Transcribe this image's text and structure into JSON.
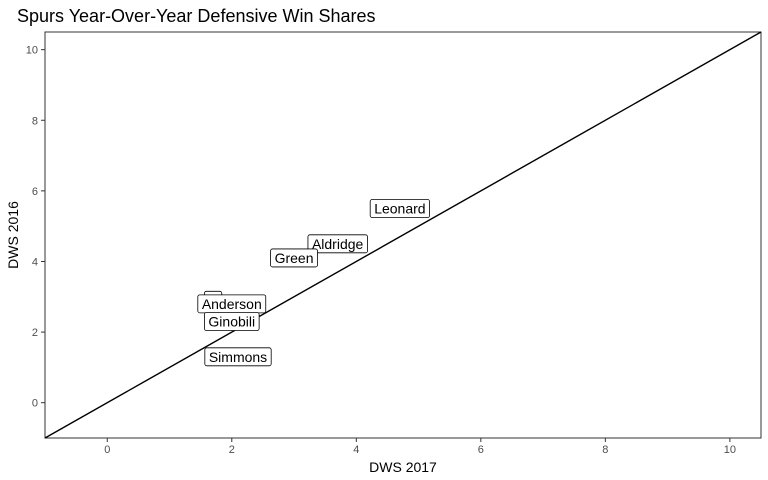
{
  "chart_data": {
    "type": "scatter",
    "title": "Spurs Year-Over-Year Defensive Win Shares",
    "xlabel": "DWS 2017",
    "ylabel": "DWS 2016",
    "xlim": [
      -1,
      10.5
    ],
    "ylim": [
      -1,
      10.5
    ],
    "x_ticks": [
      0,
      2,
      4,
      6,
      8,
      10
    ],
    "y_ticks": [
      0,
      2,
      4,
      6,
      8,
      10
    ],
    "grid": false,
    "reference_line": {
      "type": "y=x"
    },
    "points": [
      {
        "label": "Leonard",
        "x": 4.7,
        "y": 5.5
      },
      {
        "label": "Aldridge",
        "x": 3.7,
        "y": 4.5
      },
      {
        "label": "Green",
        "x": 3.0,
        "y": 4.1
      },
      {
        "label": "P",
        "x": 1.7,
        "y": 2.9
      },
      {
        "label": "Anderson",
        "x": 2.0,
        "y": 2.8
      },
      {
        "label": "Ginobili",
        "x": 2.0,
        "y": 2.3
      },
      {
        "label": "Simmons",
        "x": 2.1,
        "y": 1.3
      }
    ]
  }
}
